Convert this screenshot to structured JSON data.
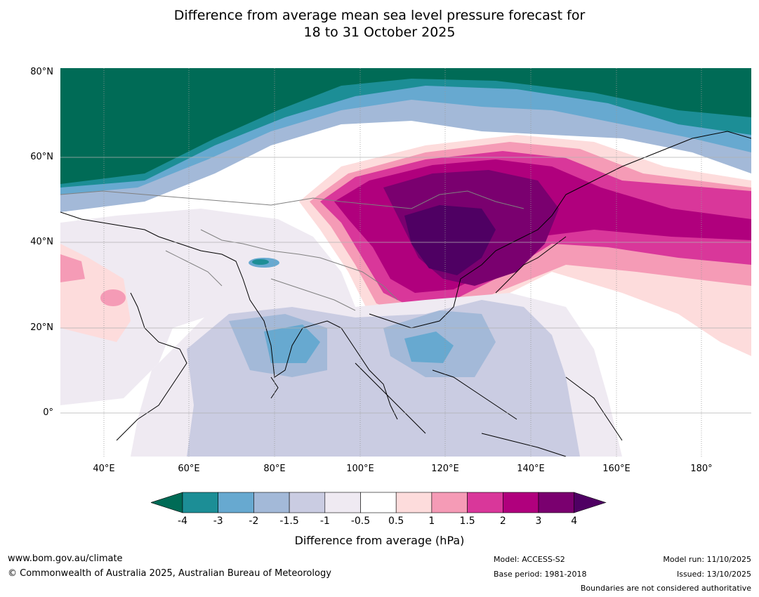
{
  "title_line1": "Difference from average mean sea level pressure forecast for",
  "title_line2": "18 to 31 October 2025",
  "lat_labels": [
    "80°N",
    "60°N",
    "40°N",
    "20°N",
    "0°"
  ],
  "lon_labels": [
    "40°E",
    "60°E",
    "80°E",
    "100°E",
    "120°E",
    "140°E",
    "160°E",
    "180°"
  ],
  "colorbar": {
    "ticks": [
      "-4",
      "-3",
      "-2",
      "-1.5",
      "-1",
      "-0.5",
      "0.5",
      "1",
      "1.5",
      "2",
      "3",
      "4"
    ],
    "colors": [
      "#006B56",
      "#1C8E96",
      "#67A9D0",
      "#A3B9D8",
      "#CACCE2",
      "#EFEAF2",
      "#FFFFFF",
      "#FDDCDC",
      "#F59BB6",
      "#D9379A",
      "#B0007D",
      "#7A006F",
      "#4F0063"
    ],
    "label": "Difference from average (hPa)"
  },
  "footer": {
    "url": "www.bom.gov.au/climate",
    "copyright": "© Commonwealth of Australia 2025, Australian Bureau of Meteorology",
    "model": "Model: ACCESS-S2",
    "base_period": "Base period: 1981-2018",
    "model_run": "Model run: 11/10/2025",
    "issued": "Issued: 13/10/2025",
    "disclaimer": "Boundaries are not considered authoritative"
  }
}
